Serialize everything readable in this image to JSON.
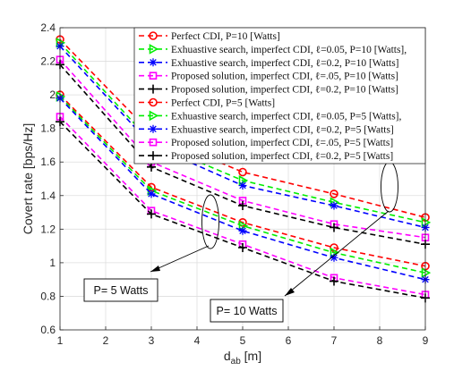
{
  "chart_data": {
    "type": "line",
    "xlabel_main": "d",
    "xlabel_sub": "ab",
    "xlabel_unit": " [m]",
    "ylabel": "Covert rate [bps/Hz]",
    "xlim": [
      1,
      9
    ],
    "ylim": [
      0.6,
      2.4
    ],
    "xticks": [
      "1",
      "2",
      "3",
      "4",
      "5",
      "6",
      "7",
      "8",
      "9"
    ],
    "yticks": [
      "0.6",
      "0.8",
      "1",
      "1.2",
      "1.4",
      "1.6",
      "1.8",
      "2",
      "2.2",
      "2.4"
    ],
    "grid": true,
    "legend_position": "top-right",
    "x": [
      1,
      3,
      5,
      7,
      9
    ],
    "series": [
      {
        "name": "Perfect CDI, P=10 [Watts]",
        "color": "#ff0000",
        "marker": "circle",
        "values": [
          2.33,
          1.77,
          1.54,
          1.41,
          1.27
        ]
      },
      {
        "name": "Exhuastive search, imperfect CDI, ℓ=0.05, P=10 [Watts],",
        "color": "#00ee00",
        "marker": "triangle-right",
        "values": [
          2.31,
          1.72,
          1.49,
          1.36,
          1.24
        ]
      },
      {
        "name": "Exhuastive search, imperfect CDI, ℓ=0.2, P=10 [Watts]",
        "color": "#0000ff",
        "marker": "star",
        "values": [
          2.29,
          1.7,
          1.46,
          1.34,
          1.21
        ]
      },
      {
        "name": "Proposed solution, imperfect CDI, ℓ=.05, P=10 [Watts]",
        "color": "#ff00ff",
        "marker": "square",
        "values": [
          2.21,
          1.6,
          1.37,
          1.23,
          1.15
        ]
      },
      {
        "name": "Proposed solution, imperfect CDI, ℓ=0.2, P=10 [Watts]",
        "color": "#000000",
        "marker": "plus",
        "values": [
          2.18,
          1.57,
          1.34,
          1.21,
          1.11
        ]
      },
      {
        "name": "Perfect CDI, P=5 [Watts]",
        "color": "#ff0000",
        "marker": "circle",
        "values": [
          2.0,
          1.45,
          1.24,
          1.09,
          0.98
        ]
      },
      {
        "name": "Exhuastive search, imperfect CDI, ℓ=0.05, P=5 [Watts],",
        "color": "#00ee00",
        "marker": "triangle-right",
        "values": [
          1.99,
          1.43,
          1.22,
          1.06,
          0.94
        ]
      },
      {
        "name": "Exhuastive search, imperfect CDI, ℓ=0.2, P=5 [Watts]",
        "color": "#0000ff",
        "marker": "star",
        "values": [
          1.98,
          1.41,
          1.19,
          1.03,
          0.9
        ]
      },
      {
        "name": "Proposed solution, imperfect CDI, ℓ=.05, P=5 [Watts]",
        "color": "#ff00ff",
        "marker": "square",
        "values": [
          1.87,
          1.31,
          1.11,
          0.91,
          0.81
        ]
      },
      {
        "name": "Proposed solution, imperfect CDI, ℓ=0.2, P=5 [Watts]",
        "color": "#000000",
        "marker": "plus",
        "values": [
          1.84,
          1.29,
          1.09,
          0.89,
          0.79
        ]
      }
    ],
    "annotations": [
      {
        "text": "P= 5 Watts"
      },
      {
        "text": "P= 10 Watts"
      }
    ]
  }
}
